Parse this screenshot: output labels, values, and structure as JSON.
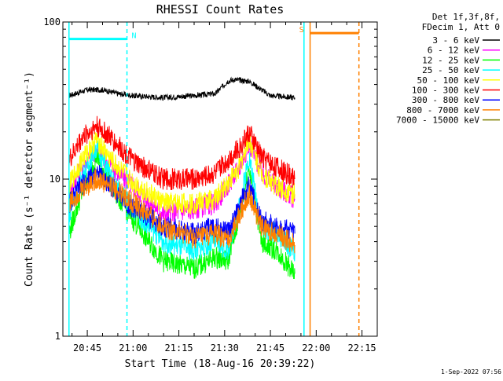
{
  "chart_data": {
    "type": "line",
    "title": "RHESSI Count Rates",
    "xlabel": "Start Time (18-Aug-16 20:39:22)",
    "ylabel": "Count Rate (s⁻¹ detector segment⁻¹)",
    "yscale": "log",
    "ylim": [
      1,
      100
    ],
    "xlim": [
      "20:37",
      "22:20"
    ],
    "x_tick_labels": [
      "20:45",
      "21:00",
      "21:15",
      "21:30",
      "21:45",
      "22:00",
      "22:15"
    ],
    "y_tick_labels": [
      "1",
      "10",
      "100"
    ],
    "legend_header": [
      "Det 1f,3f,8f,",
      "FDecim 1, Att 0"
    ],
    "legend_position": "right",
    "timestamp": "1-Sep-2022 07:56",
    "series": [
      {
        "name": "3 - 6 keV",
        "color": "#000000",
        "x": [
          "20:39",
          "20:45",
          "20:50",
          "20:55",
          "21:00",
          "21:10",
          "21:20",
          "21:27",
          "21:31",
          "21:33",
          "21:38",
          "21:45",
          "21:53"
        ],
        "y": [
          34,
          37,
          37,
          35,
          34,
          33,
          34,
          35,
          42,
          43,
          42,
          34,
          33
        ]
      },
      {
        "name": "6 - 12 keV",
        "color": "#ff00ff",
        "x": [
          "20:39",
          "20:43",
          "20:48",
          "20:53",
          "21:00",
          "21:10",
          "21:20",
          "21:27",
          "21:35",
          "21:38",
          "21:42",
          "21:47",
          "21:53"
        ],
        "y": [
          8,
          12,
          15,
          12,
          9,
          6,
          6.5,
          7,
          12,
          17,
          11,
          9,
          7.5
        ]
      },
      {
        "name": "12 - 25 keV",
        "color": "#00ff00",
        "x": [
          "20:39",
          "20:43",
          "20:48",
          "20:53",
          "21:00",
          "21:10",
          "21:20",
          "21:27",
          "21:31",
          "21:35",
          "21:38",
          "21:42",
          "21:47",
          "21:53"
        ],
        "y": [
          4.5,
          8,
          14,
          9,
          5.5,
          3,
          2.7,
          3.2,
          3,
          6,
          12,
          4,
          3.5,
          2.5
        ]
      },
      {
        "name": "25 - 50 keV",
        "color": "#00ffff",
        "x": [
          "20:39",
          "20:43",
          "20:48",
          "20:53",
          "21:00",
          "21:10",
          "21:20",
          "21:27",
          "21:31",
          "21:35",
          "21:38",
          "21:42",
          "21:47",
          "21:53"
        ],
        "y": [
          6,
          10,
          16,
          10,
          6.5,
          4,
          3.5,
          4,
          3.5,
          7,
          14,
          5,
          4.5,
          3.5
        ]
      },
      {
        "name": "50 - 100 keV",
        "color": "#ffff00",
        "x": [
          "20:39",
          "20:43",
          "20:48",
          "20:53",
          "21:00",
          "21:10",
          "21:20",
          "21:27",
          "21:35",
          "21:38",
          "21:42",
          "21:47",
          "21:53"
        ],
        "y": [
          9,
          13,
          18,
          13,
          9.5,
          7,
          7,
          7.5,
          12,
          18,
          11,
          9,
          8
        ]
      },
      {
        "name": "100 - 300 keV",
        "color": "#ff0000",
        "x": [
          "20:39",
          "20:43",
          "20:48",
          "20:53",
          "21:00",
          "21:10",
          "21:20",
          "21:27",
          "21:35",
          "21:38",
          "21:42",
          "21:47",
          "21:53"
        ],
        "y": [
          13,
          18,
          22,
          18,
          13,
          10,
          10,
          11,
          16,
          20,
          14,
          12,
          10
        ]
      },
      {
        "name": "300 - 800 keV",
        "color": "#0000ff",
        "x": [
          "20:39",
          "20:43",
          "20:48",
          "20:53",
          "21:00",
          "21:10",
          "21:20",
          "21:27",
          "21:31",
          "21:35",
          "21:38",
          "21:42",
          "21:47",
          "21:53"
        ],
        "y": [
          7,
          9,
          11,
          9,
          6.5,
          5,
          4.5,
          5,
          4.5,
          7,
          9,
          5.5,
          5,
          4.5
        ]
      },
      {
        "name": "800 - 7000 keV",
        "color": "#ff8000",
        "x": [
          "20:39",
          "20:43",
          "20:48",
          "20:53",
          "21:00",
          "21:10",
          "21:20",
          "21:27",
          "21:31",
          "21:35",
          "21:38",
          "21:42",
          "21:47",
          "21:53"
        ],
        "y": [
          7,
          8.5,
          10,
          9,
          7,
          5,
          4.2,
          4.5,
          4,
          6,
          8,
          5,
          4.5,
          3.8
        ]
      },
      {
        "name": "7000 - 15000 keV",
        "color": "#808000",
        "x": [],
        "y": []
      }
    ],
    "annotations": [
      {
        "text": "N",
        "color": "#00ffff",
        "x_start": "20:39",
        "x_end": "20:58",
        "y": 78
      },
      {
        "text": "S",
        "color": "#ff8000",
        "x_start": "21:58",
        "x_end": "22:14",
        "y": 85
      }
    ],
    "vertical_lines": [
      {
        "x": "20:39",
        "style": "solid",
        "color": "#00ffff"
      },
      {
        "x": "20:58",
        "style": "dashed",
        "color": "#00ffff"
      },
      {
        "x": "21:56",
        "style": "solid",
        "color": "#00ffff"
      },
      {
        "x": "21:58",
        "style": "solid",
        "color": "#ff8000"
      },
      {
        "x": "22:14",
        "style": "dashed",
        "color": "#ff8000"
      }
    ],
    "grid": false
  }
}
